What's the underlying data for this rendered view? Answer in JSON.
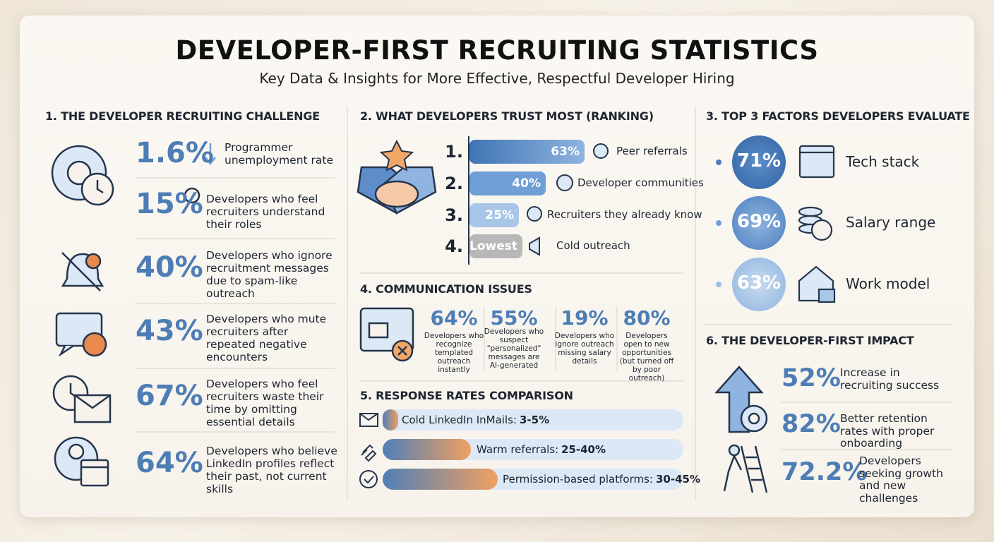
{
  "header": {
    "title": "DEVELOPER-FIRST RECRUITING STATISTICS",
    "subtitle": "Key Data & Insights for More Effective, Respectful Developer Hiring"
  },
  "challenge": {
    "heading": "1. THE DEVELOPER RECRUITING CHALLENGE",
    "items": [
      {
        "stat": "1.6%",
        "text": "Programmer unemployment rate"
      },
      {
        "stat": "15%",
        "text": "Developers who feel recruiters understand their roles"
      },
      {
        "stat": "40%",
        "text": "Developers who ignore recruitment messages due to spam-like outreach"
      },
      {
        "stat": "43%",
        "text": "Developers who mute recruiters after repeated negative encounters"
      },
      {
        "stat": "67%",
        "text": "Developers who feel recruiters waste their time by omitting essential details"
      },
      {
        "stat": "64%",
        "text": "Developers who believe LinkedIn profiles reflect their past, not current skills"
      }
    ]
  },
  "trust": {
    "heading": "2. WHAT DEVELOPERS TRUST MOST (RANKING)",
    "items": [
      {
        "rank": "1.",
        "stat": "63%",
        "label": "Peer referrals"
      },
      {
        "rank": "2.",
        "stat": "40%",
        "label": "Developer communities"
      },
      {
        "rank": "3.",
        "stat": "25%",
        "label": "Recruiters they already know"
      },
      {
        "rank": "4.",
        "stat": "Lowest",
        "label": "Cold outreach"
      }
    ]
  },
  "communication": {
    "heading": "4. COMMUNICATION ISSUES",
    "items": [
      {
        "stat": "64%",
        "text": "Developers who recognize templated outreach instantly"
      },
      {
        "stat": "55%",
        "text": "Developers who suspect \"personalized\" messages are AI-generated"
      },
      {
        "stat": "19%",
        "text": "Developers who ignore outreach missing salary details"
      },
      {
        "stat": "80%",
        "text": "Developers open to new opportunities (but turned off by poor outreach)"
      }
    ]
  },
  "response": {
    "heading": "5. RESPONSE RATES COMPARISON",
    "items": [
      {
        "label": "Cold LinkedIn InMails:",
        "value": "3-5%"
      },
      {
        "label": "Warm referrals:",
        "value": "25-40%"
      },
      {
        "label": "Permission-based platforms:",
        "value": "30-45%"
      }
    ]
  },
  "factors": {
    "heading": "3. TOP 3 FACTORS DEVELOPERS EVALUATE",
    "items": [
      {
        "stat": "71%",
        "label": "Tech stack"
      },
      {
        "stat": "69%",
        "label": "Salary range"
      },
      {
        "stat": "63%",
        "label": "Work model"
      }
    ]
  },
  "impact": {
    "heading": "6. THE DEVELOPER-FIRST IMPACT",
    "items": [
      {
        "stat": "52%",
        "text": "Increase in recruiting success"
      },
      {
        "stat": "82%",
        "text": "Better retention rates with proper onboarding"
      },
      {
        "stat": "72.2%",
        "text": "Developers seeking growth and new challenges"
      }
    ]
  }
}
